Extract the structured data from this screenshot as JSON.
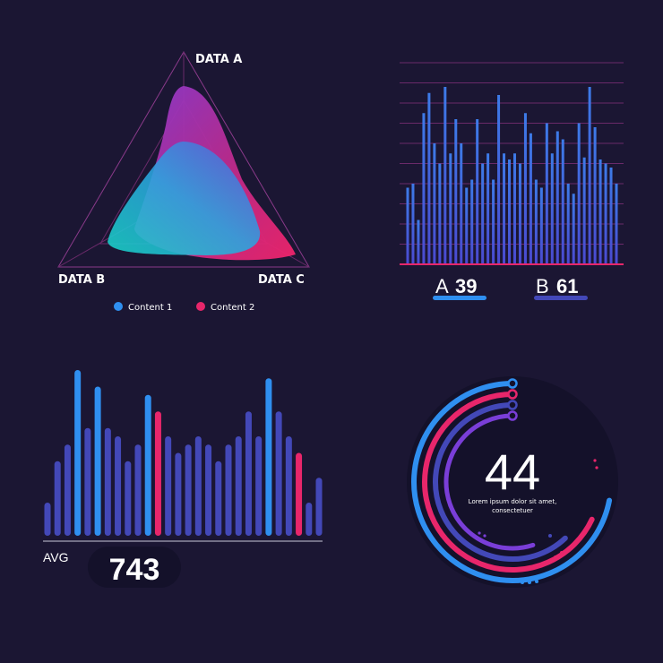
{
  "colors": {
    "background": "#1b1633",
    "blue": "#2f8ff0",
    "pink": "#e8266b",
    "violet": "#5a4ed0",
    "indigo": "#4348b8",
    "purple": "#8a3ad0",
    "cyan": "#1ad0d0",
    "grid": "#6a2a6a"
  },
  "chart_data": [
    {
      "type": "radar",
      "axes": [
        "DATA A",
        "DATA B",
        "DATA C"
      ],
      "series": [
        {
          "name": "Content 1",
          "color": "#2f8ff0",
          "values": [
            0.6,
            0.95,
            0.55
          ]
        },
        {
          "name": "Content 2",
          "color": "#e8266b",
          "values": [
            0.86,
            0.55,
            0.88
          ]
        }
      ],
      "legend": "bottom"
    },
    {
      "type": "bar",
      "values": [
        38,
        40,
        22,
        75,
        85,
        60,
        50,
        88,
        55,
        72,
        60,
        38,
        42,
        72,
        50,
        55,
        42,
        84,
        55,
        52,
        55,
        50,
        75,
        65,
        42,
        38,
        70,
        55,
        66,
        62,
        40,
        35,
        70,
        53,
        88,
        68,
        52,
        50,
        48,
        40
      ],
      "ylim": [
        0,
        100
      ],
      "grid": true,
      "stats": [
        {
          "letter": "A",
          "value": "39",
          "color": "#2f8ff0"
        },
        {
          "letter": "B",
          "value": "61",
          "color": "#4348b8"
        }
      ]
    },
    {
      "type": "bar",
      "values": [
        20,
        45,
        55,
        100,
        65,
        90,
        65,
        60,
        45,
        55,
        85,
        75,
        60,
        50,
        55,
        60,
        55,
        45,
        55,
        60,
        75,
        60,
        95,
        75,
        60,
        50,
        20,
        35
      ],
      "highlight": {
        "3": "blue",
        "5": "blue",
        "10": "blue",
        "11": "pink",
        "22": "blue",
        "25": "pink"
      },
      "ylim": [
        0,
        100
      ],
      "avg_label": "AVG",
      "avg_value": "743"
    },
    {
      "type": "radial",
      "value": "44",
      "caption": [
        "Lorem ipsum dolor sit amet,",
        "consectetuer"
      ],
      "rings": [
        {
          "color": "#2f8ff0",
          "fraction": 0.72
        },
        {
          "color": "#e8266b",
          "fraction": 0.68
        },
        {
          "color": "#4348b8",
          "fraction": 0.62
        },
        {
          "color": "#7a3ed8",
          "fraction": 0.55
        }
      ]
    }
  ]
}
